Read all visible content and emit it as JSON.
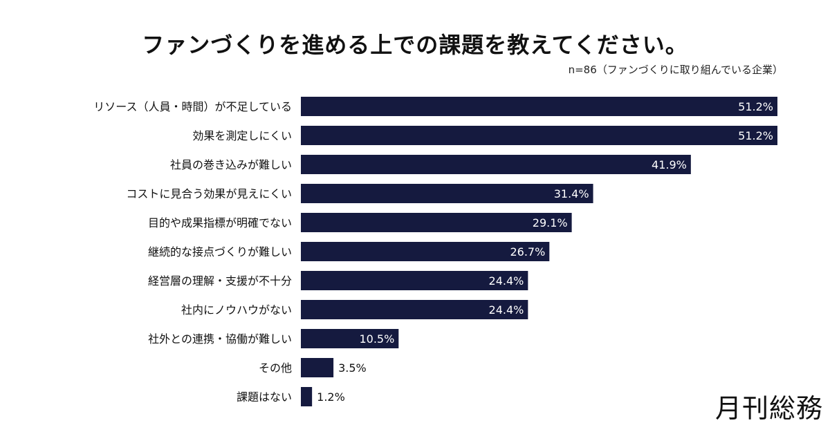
{
  "chart_data": {
    "type": "bar",
    "orientation": "horizontal",
    "title": "ファンづくりを進める上での課題を教えてください。",
    "subtitle": "n=86（ファンづくりに取り組んでいる企業）",
    "categories": [
      "リソース（人員・時間）が不足している",
      "効果を測定しにくい",
      "社員の巻き込みが難しい",
      "コストに見合う効果が見えにくい",
      "目的や成果指標が明確でない",
      "継続的な接点づくりが難しい",
      "経営層の理解・支援が不十分",
      "社内にノウハウがない",
      "社外との連携・協働が難しい",
      "その他",
      "課題はない"
    ],
    "values": [
      51.2,
      51.2,
      41.9,
      31.4,
      29.1,
      26.7,
      24.4,
      24.4,
      10.5,
      3.5,
      1.2
    ],
    "value_format": "%",
    "grid": false,
    "bar_color": "#151a3f"
  },
  "logo_text": "月刊総務"
}
